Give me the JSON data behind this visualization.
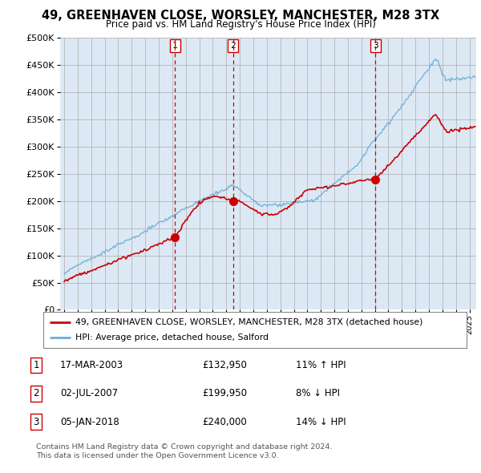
{
  "title": "49, GREENHAVEN CLOSE, WORSLEY, MANCHESTER, M28 3TX",
  "subtitle": "Price paid vs. HM Land Registry's House Price Index (HPI)",
  "hpi_label": "HPI: Average price, detached house, Salford",
  "property_label": "49, GREENHAVEN CLOSE, WORSLEY, MANCHESTER, M28 3TX (detached house)",
  "transactions": [
    {
      "num": 1,
      "date": "17-MAR-2003",
      "price": 132950,
      "pct": "11%",
      "dir": "↑",
      "year": 2003.21
    },
    {
      "num": 2,
      "date": "02-JUL-2007",
      "price": 199950,
      "pct": "8%",
      "dir": "↓",
      "year": 2007.5
    },
    {
      "num": 3,
      "date": "05-JAN-2018",
      "price": 240000,
      "pct": "14%",
      "dir": "↓",
      "year": 2018.03
    }
  ],
  "footnote1": "Contains HM Land Registry data © Crown copyright and database right 2024.",
  "footnote2": "This data is licensed under the Open Government Licence v3.0.",
  "hpi_color": "#6baed6",
  "property_color": "#cc0000",
  "transaction_line_color": "#cc0000",
  "chart_bg": "#dce9f5",
  "ylim": [
    0,
    500000
  ],
  "yticks": [
    0,
    50000,
    100000,
    150000,
    200000,
    250000,
    300000,
    350000,
    400000,
    450000,
    500000
  ],
  "background_color": "#ffffff",
  "grid_color": "#aaaaaa"
}
